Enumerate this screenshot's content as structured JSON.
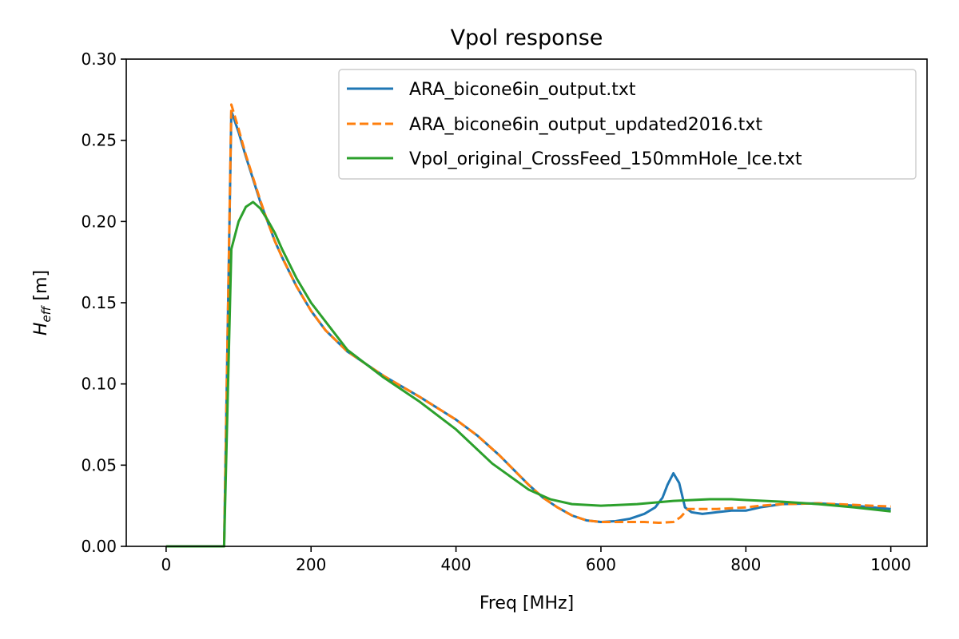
{
  "chart_data": {
    "type": "line",
    "title": "Vpol response",
    "xlabel": "Freq [MHz]",
    "ylabel_main": "H",
    "ylabel_sub": "eff",
    "ylabel_unit": " [m]",
    "xlim": [
      -55,
      1050
    ],
    "ylim": [
      0,
      0.3
    ],
    "xticks": [
      0,
      200,
      400,
      600,
      800,
      1000
    ],
    "yticks": [
      0,
      0.05,
      0.1,
      0.15,
      0.2,
      0.25,
      0.3
    ],
    "xtick_labels": [
      "0",
      "200",
      "400",
      "600",
      "800",
      "1000"
    ],
    "ytick_labels": [
      "0.00",
      "0.05",
      "0.10",
      "0.15",
      "0.20",
      "0.25",
      "0.30"
    ],
    "grid": false,
    "legend_position": "top-right",
    "series": [
      {
        "name": "ARA_bicone6in_output.txt",
        "color": "#1f77b4",
        "dash": "solid",
        "x": [
          0,
          80,
          90,
          100,
          110,
          120,
          130,
          140,
          150,
          160,
          180,
          200,
          220,
          250,
          300,
          350,
          400,
          430,
          460,
          480,
          500,
          520,
          540,
          560,
          580,
          600,
          620,
          640,
          660,
          675,
          685,
          692,
          700,
          708,
          716,
          725,
          740,
          760,
          780,
          800,
          820,
          850,
          900,
          950,
          1000
        ],
        "y": [
          0,
          0,
          0.268,
          0.255,
          0.24,
          0.226,
          0.212,
          0.2,
          0.188,
          0.178,
          0.16,
          0.145,
          0.133,
          0.12,
          0.105,
          0.092,
          0.078,
          0.068,
          0.056,
          0.047,
          0.038,
          0.03,
          0.024,
          0.019,
          0.016,
          0.015,
          0.0155,
          0.017,
          0.02,
          0.024,
          0.03,
          0.038,
          0.045,
          0.039,
          0.024,
          0.021,
          0.02,
          0.021,
          0.022,
          0.022,
          0.024,
          0.026,
          0.0265,
          0.025,
          0.023
        ]
      },
      {
        "name": "ARA_bicone6in_output_updated2016.txt",
        "color": "#ff7f0e",
        "dash": "dashed",
        "x": [
          0,
          80,
          90,
          100,
          110,
          120,
          130,
          140,
          150,
          160,
          180,
          200,
          220,
          250,
          300,
          350,
          400,
          430,
          460,
          480,
          500,
          520,
          540,
          560,
          580,
          600,
          620,
          640,
          660,
          680,
          700,
          710,
          720,
          740,
          760,
          780,
          800,
          820,
          850,
          900,
          950,
          1000
        ],
        "y": [
          0,
          0,
          0.272,
          0.257,
          0.241,
          0.227,
          0.213,
          0.2,
          0.188,
          0.178,
          0.16,
          0.145,
          0.133,
          0.12,
          0.105,
          0.092,
          0.078,
          0.068,
          0.056,
          0.047,
          0.038,
          0.03,
          0.024,
          0.019,
          0.016,
          0.015,
          0.015,
          0.015,
          0.015,
          0.0145,
          0.015,
          0.018,
          0.023,
          0.023,
          0.023,
          0.0235,
          0.024,
          0.025,
          0.026,
          0.0265,
          0.0255,
          0.0245
        ]
      },
      {
        "name": "Vpol_original_CrossFeed_150mmHole_Ice.txt",
        "color": "#2ca02c",
        "dash": "solid",
        "x": [
          0,
          80,
          90,
          100,
          110,
          120,
          130,
          140,
          150,
          160,
          180,
          200,
          250,
          300,
          350,
          400,
          450,
          500,
          530,
          560,
          600,
          650,
          700,
          750,
          780,
          800,
          850,
          900,
          950,
          1000
        ],
        "y": [
          0,
          0,
          0.183,
          0.2,
          0.209,
          0.212,
          0.208,
          0.201,
          0.193,
          0.183,
          0.165,
          0.15,
          0.121,
          0.104,
          0.089,
          0.072,
          0.051,
          0.035,
          0.029,
          0.026,
          0.025,
          0.026,
          0.028,
          0.029,
          0.029,
          0.0285,
          0.0275,
          0.026,
          0.024,
          0.0215
        ]
      }
    ]
  }
}
